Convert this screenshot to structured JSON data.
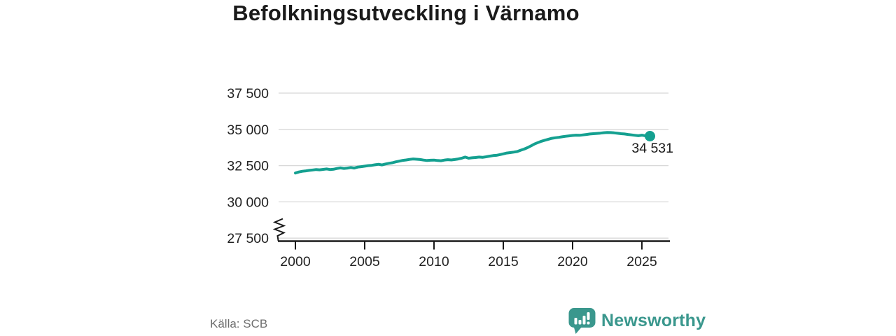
{
  "title": "Befolkningsutveckling i Värnamo",
  "footer": {
    "source": "Källa: SCB",
    "logo_text": "Newsworthy"
  },
  "colors": {
    "line": "#14a090",
    "logo": "#3a978d",
    "grid": "#d8d8d8",
    "axis": "#1a1a1a",
    "tick_text": "#222222",
    "source_text": "#6e6e6e"
  },
  "chart_data": {
    "type": "line",
    "title": "Befolkningsutveckling i Värnamo",
    "xlabel": "",
    "ylabel": "",
    "x_ticks": [
      2000,
      2005,
      2010,
      2015,
      2020,
      2025
    ],
    "y_ticks": [
      37500,
      35000,
      32500,
      30000,
      27500
    ],
    "y_tick_labels": [
      "37 500",
      "35 000",
      "32 500",
      "30 000",
      "27 500"
    ],
    "axis_break_at": 27500,
    "grid": true,
    "legend": "none",
    "end_label": "34 531",
    "end_value": 34531,
    "series": [
      {
        "name": "Befolkning i Värnamo kommun",
        "x": [
          2000.0,
          2000.25,
          2000.5,
          2000.75,
          2001.0,
          2001.25,
          2001.5,
          2001.75,
          2002.0,
          2002.25,
          2002.5,
          2002.75,
          2003.0,
          2003.25,
          2003.5,
          2003.75,
          2004.0,
          2004.25,
          2004.5,
          2004.75,
          2005.0,
          2005.25,
          2005.5,
          2005.75,
          2006.0,
          2006.25,
          2006.5,
          2006.75,
          2007.0,
          2007.25,
          2007.5,
          2007.75,
          2008.0,
          2008.25,
          2008.5,
          2008.75,
          2009.0,
          2009.25,
          2009.5,
          2009.75,
          2010.0,
          2010.25,
          2010.5,
          2010.75,
          2011.0,
          2011.25,
          2011.5,
          2011.75,
          2012.0,
          2012.25,
          2012.5,
          2012.75,
          2013.0,
          2013.25,
          2013.5,
          2013.75,
          2014.0,
          2014.25,
          2014.5,
          2014.75,
          2015.0,
          2015.25,
          2015.5,
          2015.75,
          2016.0,
          2016.25,
          2016.5,
          2016.75,
          2017.0,
          2017.25,
          2017.5,
          2017.75,
          2018.0,
          2018.25,
          2018.5,
          2018.75,
          2019.0,
          2019.25,
          2019.5,
          2019.75,
          2020.0,
          2020.25,
          2020.5,
          2020.75,
          2021.0,
          2021.25,
          2021.5,
          2021.75,
          2022.0,
          2022.25,
          2022.5,
          2022.75,
          2023.0,
          2023.25,
          2023.5,
          2023.75,
          2024.0,
          2024.25,
          2024.5,
          2024.75,
          2025.0,
          2025.25,
          2025.58
        ],
        "y": [
          31990,
          32060,
          32110,
          32140,
          32170,
          32200,
          32230,
          32210,
          32240,
          32270,
          32230,
          32250,
          32300,
          32340,
          32300,
          32330,
          32370,
          32330,
          32400,
          32430,
          32460,
          32500,
          32520,
          32560,
          32590,
          32550,
          32610,
          32660,
          32700,
          32760,
          32810,
          32860,
          32890,
          32930,
          32960,
          32940,
          32920,
          32880,
          32850,
          32870,
          32880,
          32850,
          32840,
          32880,
          32910,
          32890,
          32920,
          32960,
          33010,
          33090,
          33010,
          33040,
          33060,
          33090,
          33070,
          33110,
          33150,
          33190,
          33210,
          33260,
          33310,
          33370,
          33400,
          33430,
          33470,
          33560,
          33640,
          33740,
          33860,
          33990,
          34090,
          34180,
          34250,
          34320,
          34380,
          34420,
          34450,
          34490,
          34520,
          34550,
          34580,
          34600,
          34590,
          34620,
          34650,
          34680,
          34700,
          34720,
          34740,
          34770,
          34790,
          34780,
          34760,
          34730,
          34700,
          34680,
          34650,
          34620,
          34590,
          34560,
          34600,
          34550,
          34531
        ]
      }
    ]
  }
}
